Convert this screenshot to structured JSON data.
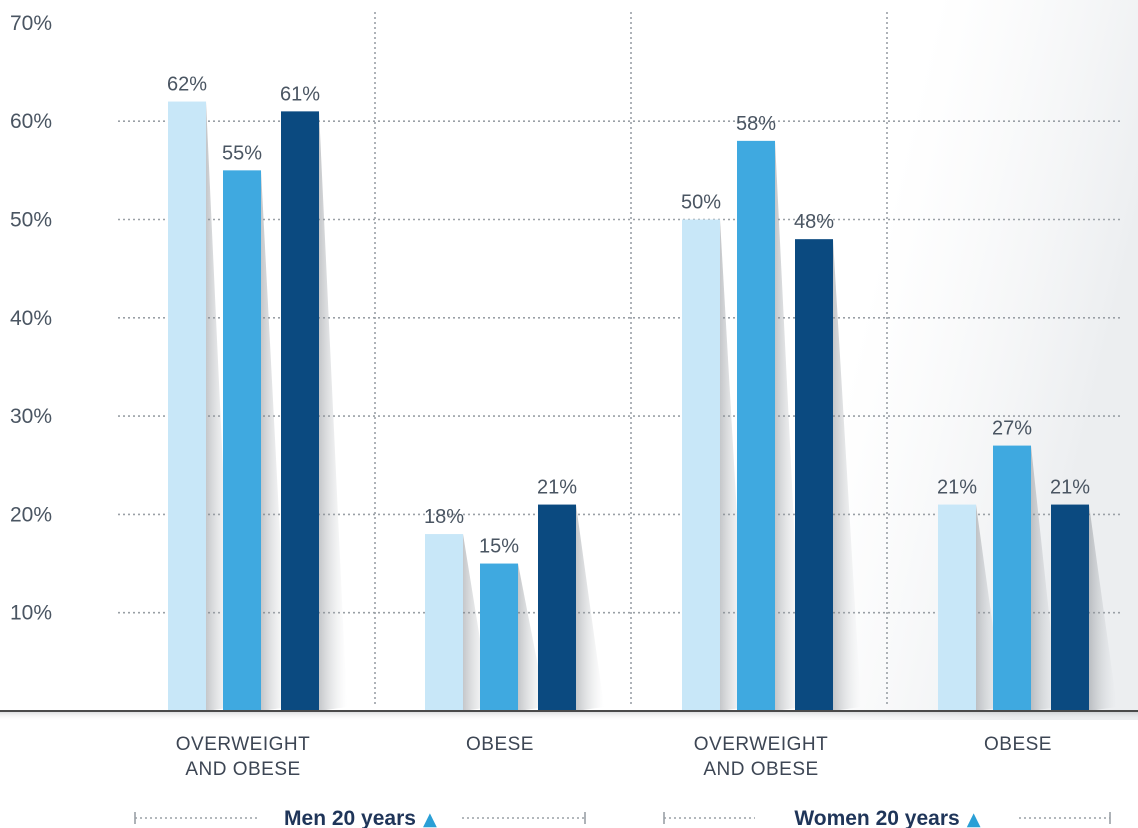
{
  "chart_data": {
    "type": "bar",
    "ylim": [
      0,
      70
    ],
    "yticks": [
      "10%",
      "20%",
      "30%",
      "40%",
      "50%",
      "60%",
      "70%"
    ],
    "ytick_values": [
      10,
      20,
      30,
      40,
      50,
      60,
      70
    ],
    "grid": true,
    "categories": [
      [
        "OVERWEIGHT",
        "AND OBESE"
      ],
      [
        "OBESE"
      ],
      [
        "OVERWEIGHT",
        "AND OBESE"
      ],
      [
        "OBESE"
      ]
    ],
    "groups": [
      {
        "label": "Men  20 years",
        "marker": "▲",
        "categories": [
          0,
          1
        ]
      },
      {
        "label": "Women  20 years",
        "marker": "▲",
        "categories": [
          2,
          3
        ]
      }
    ],
    "series": [
      {
        "color": "#c8e7f8",
        "values": [
          62,
          18,
          50,
          21
        ],
        "labels": [
          "62%",
          "18%",
          "50%",
          "21%"
        ]
      },
      {
        "color": "#3fa9e0",
        "values": [
          55,
          15,
          58,
          27
        ],
        "labels": [
          "55%",
          "15%",
          "58%",
          "27%"
        ]
      },
      {
        "color": "#0b4a80",
        "values": [
          61,
          21,
          48,
          21
        ],
        "labels": [
          "61%",
          "21%",
          "48%",
          "21%"
        ]
      }
    ]
  },
  "colors": {
    "grid": "#9aa0a6",
    "baseline": "#4a4a4a",
    "group_marker": "#2a9fd6",
    "group_text": "#1f3559"
  }
}
